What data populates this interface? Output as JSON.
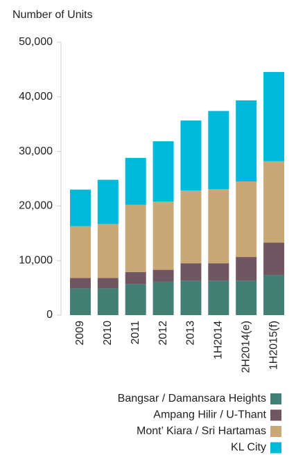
{
  "chart_data": {
    "type": "stacked_bar",
    "y_axis_label": "Number of Units",
    "categories": [
      "2009",
      "2010",
      "2011",
      "2012",
      "2013",
      "1H2014",
      "2H2014(e)",
      "1H2015(f)"
    ],
    "series": [
      {
        "name": "Bangsar / Damansara Heights",
        "color": "#437f73",
        "values": [
          4900,
          4900,
          5700,
          6100,
          6300,
          6300,
          6300,
          7350
        ]
      },
      {
        "name": "Ampang Hilir / U-Thant",
        "color": "#6f5660",
        "values": [
          1900,
          1900,
          2200,
          2200,
          3200,
          3200,
          4350,
          5950
        ]
      },
      {
        "name": "Mont’ Kiara / Sri Hartamas",
        "color": "#c9a878",
        "values": [
          9500,
          9900,
          12300,
          12500,
          13350,
          13600,
          13850,
          14900
        ]
      },
      {
        "name": "KL City",
        "color": "#00b9d9",
        "values": [
          6700,
          8100,
          8600,
          11050,
          12800,
          14300,
          14850,
          16350
        ]
      }
    ],
    "ylim": [
      0,
      50000
    ],
    "yticks": [
      0,
      {
        "value": 10000,
        "label": "10,000"
      },
      {
        "value": 20000,
        "label": "20,000"
      },
      {
        "value": 30000,
        "label": "30,000"
      },
      {
        "value": 40000,
        "label": "40,000"
      },
      {
        "value": 50000,
        "label": "50,000"
      }
    ],
    "grid": false
  }
}
